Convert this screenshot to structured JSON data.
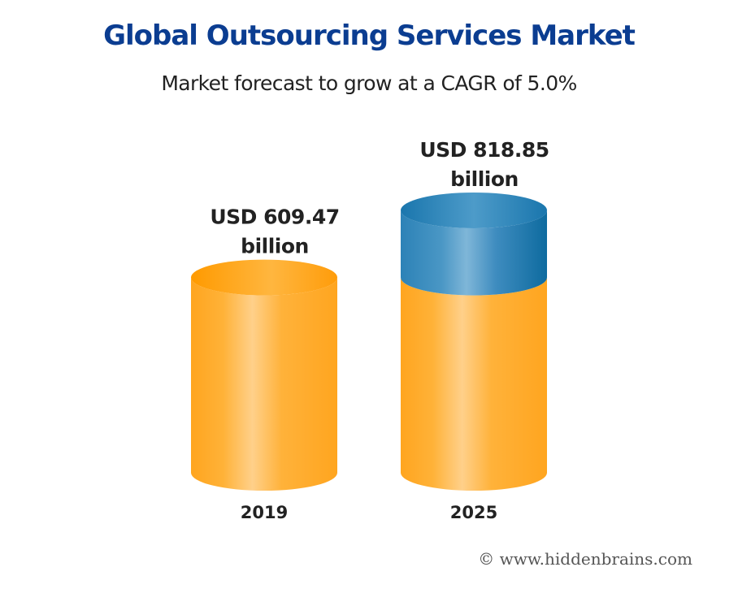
{
  "title": "Global Outsourcing Services Market",
  "subtitle": "Market forecast to grow at a CAGR of 5.0%",
  "watermark": "© www.hiddenbrains.com",
  "colors": {
    "title": "#0b3d91",
    "base_bar": "#ffa51f",
    "base_bar_highlight": "#ffd08a",
    "growth_bar": "#1a6fa6",
    "growth_bar_highlight": "#7fb6d8"
  },
  "chart_data": {
    "type": "bar",
    "style": "3d-cylinder",
    "title": "Global Outsourcing Services Market",
    "subtitle": "Market forecast to grow at a CAGR of 5.0%",
    "categories": [
      "2019",
      "2025"
    ],
    "values": [
      609.47,
      818.85
    ],
    "unit": "USD billion",
    "data_labels": [
      [
        "USD 609.47",
        "billion"
      ],
      [
        "USD 818.85",
        "billion"
      ]
    ],
    "cagr_percent": 5.0,
    "grid": false,
    "legend": "none"
  }
}
